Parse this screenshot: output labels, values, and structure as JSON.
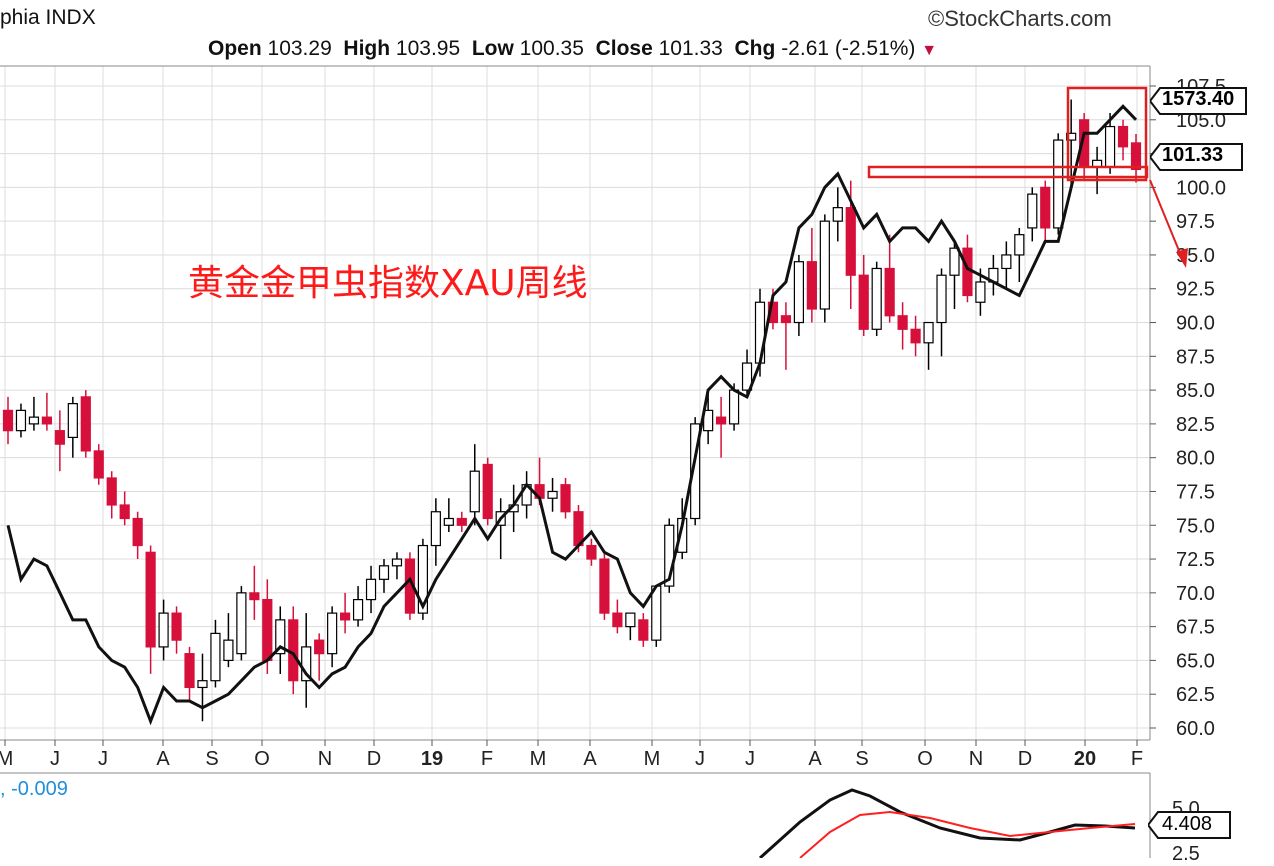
{
  "header": {
    "symbol_text": "phia INDX",
    "provider": "StockCharts.com",
    "copyright_symbol": "©",
    "ohlc": {
      "open_label": "Open",
      "open": "103.29",
      "high_label": "High",
      "high": "103.95",
      "low_label": "Low",
      "low": "100.35",
      "close_label": "Close",
      "close": "101.33",
      "chg_label": "Chg",
      "chg": "-2.61 (-2.51%)"
    }
  },
  "annotation": {
    "text": "黄金金甲虫指数XAU周线",
    "color": "#ff0000"
  },
  "price_labels": {
    "top": "1573.40",
    "last": "101.33"
  },
  "lower_panel": {
    "value_text": ", -0.009",
    "last_label": "4.408",
    "ticks": [
      "5.0",
      "2.5"
    ]
  },
  "colors": {
    "up": "#000000",
    "down": "#d6103b",
    "signal": "#ff2020",
    "grid": "#dcdcdc",
    "accent_blue": "#1f8fd9"
  },
  "chart_data": {
    "type": "candlestick",
    "y_ticks": [
      "60.0",
      "62.5",
      "65.0",
      "67.5",
      "70.0",
      "72.5",
      "75.0",
      "77.5",
      "80.0",
      "82.5",
      "85.0",
      "87.5",
      "90.0",
      "92.5",
      "95.0",
      "97.5",
      "100.0",
      "102.5",
      "105.0",
      "107.5"
    ],
    "ylim": [
      60,
      107.5
    ],
    "x_labels": [
      "M",
      "J",
      "J",
      "A",
      "S",
      "O",
      "N",
      "D",
      "19",
      "F",
      "M",
      "A",
      "M",
      "J",
      "J",
      "A",
      "S",
      "O",
      "N",
      "D",
      "20",
      "F"
    ],
    "candles": [
      {
        "o": 83.5,
        "h": 84.5,
        "l": 81.0,
        "c": 82.0
      },
      {
        "o": 82.0,
        "h": 84.0,
        "l": 81.5,
        "c": 83.5
      },
      {
        "o": 82.5,
        "h": 84.5,
        "l": 82.0,
        "c": 83.0
      },
      {
        "o": 83.0,
        "h": 84.8,
        "l": 82.0,
        "c": 82.5
      },
      {
        "o": 82.0,
        "h": 83.5,
        "l": 79.0,
        "c": 81.0
      },
      {
        "o": 81.5,
        "h": 84.5,
        "l": 80.0,
        "c": 84.0
      },
      {
        "o": 84.5,
        "h": 85.0,
        "l": 80.0,
        "c": 80.5
      },
      {
        "o": 80.5,
        "h": 81.0,
        "l": 78.0,
        "c": 78.5
      },
      {
        "o": 78.5,
        "h": 79.0,
        "l": 75.5,
        "c": 76.5
      },
      {
        "o": 76.5,
        "h": 77.5,
        "l": 75.0,
        "c": 75.5
      },
      {
        "o": 75.5,
        "h": 76.0,
        "l": 72.5,
        "c": 73.5
      },
      {
        "o": 73.0,
        "h": 73.5,
        "l": 64.0,
        "c": 66.0
      },
      {
        "o": 66.0,
        "h": 69.5,
        "l": 65.0,
        "c": 68.5
      },
      {
        "o": 68.5,
        "h": 69.0,
        "l": 65.5,
        "c": 66.5
      },
      {
        "o": 65.5,
        "h": 66.0,
        "l": 62.0,
        "c": 63.0
      },
      {
        "o": 63.0,
        "h": 65.5,
        "l": 60.5,
        "c": 63.5
      },
      {
        "o": 63.5,
        "h": 68.0,
        "l": 63.0,
        "c": 67.0
      },
      {
        "o": 65.0,
        "h": 68.5,
        "l": 64.5,
        "c": 66.5
      },
      {
        "o": 65.5,
        "h": 70.5,
        "l": 65.0,
        "c": 70.0
      },
      {
        "o": 70.0,
        "h": 72.0,
        "l": 68.0,
        "c": 69.5
      },
      {
        "o": 69.5,
        "h": 71.0,
        "l": 64.0,
        "c": 65.0
      },
      {
        "o": 65.5,
        "h": 69.0,
        "l": 64.0,
        "c": 68.0
      },
      {
        "o": 68.0,
        "h": 69.0,
        "l": 62.5,
        "c": 63.5
      },
      {
        "o": 63.5,
        "h": 68.5,
        "l": 61.5,
        "c": 66.0
      },
      {
        "o": 66.5,
        "h": 67.0,
        "l": 63.5,
        "c": 65.5
      },
      {
        "o": 65.5,
        "h": 69.0,
        "l": 64.5,
        "c": 68.5
      },
      {
        "o": 68.5,
        "h": 70.0,
        "l": 67.0,
        "c": 68.0
      },
      {
        "o": 68.0,
        "h": 70.5,
        "l": 67.5,
        "c": 69.5
      },
      {
        "o": 69.5,
        "h": 72.0,
        "l": 68.5,
        "c": 71.0
      },
      {
        "o": 71.0,
        "h": 72.5,
        "l": 70.0,
        "c": 72.0
      },
      {
        "o": 72.0,
        "h": 73.0,
        "l": 71.0,
        "c": 72.5
      },
      {
        "o": 72.5,
        "h": 73.0,
        "l": 68.0,
        "c": 68.5
      },
      {
        "o": 68.5,
        "h": 74.0,
        "l": 68.0,
        "c": 73.5
      },
      {
        "o": 73.5,
        "h": 77.0,
        "l": 72.0,
        "c": 76.0
      },
      {
        "o": 75.0,
        "h": 77.0,
        "l": 74.5,
        "c": 75.5
      },
      {
        "o": 75.5,
        "h": 76.0,
        "l": 74.5,
        "c": 75.0
      },
      {
        "o": 76.0,
        "h": 81.0,
        "l": 75.0,
        "c": 79.0
      },
      {
        "o": 79.5,
        "h": 80.0,
        "l": 75.0,
        "c": 75.5
      },
      {
        "o": 75.0,
        "h": 77.0,
        "l": 72.5,
        "c": 76.0
      },
      {
        "o": 76.0,
        "h": 78.0,
        "l": 74.5,
        "c": 76.5
      },
      {
        "o": 76.5,
        "h": 79.0,
        "l": 75.5,
        "c": 78.0
      },
      {
        "o": 78.0,
        "h": 80.0,
        "l": 76.5,
        "c": 77.0
      },
      {
        "o": 77.0,
        "h": 78.5,
        "l": 76.0,
        "c": 77.5
      },
      {
        "o": 78.0,
        "h": 78.5,
        "l": 75.5,
        "c": 76.0
      },
      {
        "o": 76.0,
        "h": 76.5,
        "l": 73.0,
        "c": 73.5
      },
      {
        "o": 73.5,
        "h": 74.0,
        "l": 72.0,
        "c": 72.5
      },
      {
        "o": 72.5,
        "h": 73.0,
        "l": 68.0,
        "c": 68.5
      },
      {
        "o": 68.5,
        "h": 69.5,
        "l": 67.0,
        "c": 67.5
      },
      {
        "o": 67.5,
        "h": 68.5,
        "l": 66.5,
        "c": 68.5
      },
      {
        "o": 68.0,
        "h": 68.5,
        "l": 66.0,
        "c": 66.5
      },
      {
        "o": 66.5,
        "h": 70.5,
        "l": 66.0,
        "c": 70.5
      },
      {
        "o": 70.5,
        "h": 75.5,
        "l": 70.0,
        "c": 75.0
      },
      {
        "o": 73.0,
        "h": 77.0,
        "l": 72.5,
        "c": 75.5
      },
      {
        "o": 75.5,
        "h": 83.0,
        "l": 75.0,
        "c": 82.5
      },
      {
        "o": 82.0,
        "h": 85.0,
        "l": 81.0,
        "c": 83.5
      },
      {
        "o": 83.0,
        "h": 84.5,
        "l": 80.0,
        "c": 82.5
      },
      {
        "o": 82.5,
        "h": 85.5,
        "l": 82.0,
        "c": 85.0
      },
      {
        "o": 85.0,
        "h": 88.0,
        "l": 84.5,
        "c": 87.0
      },
      {
        "o": 87.0,
        "h": 92.5,
        "l": 86.0,
        "c": 91.5
      },
      {
        "o": 91.5,
        "h": 92.5,
        "l": 89.5,
        "c": 90.0
      },
      {
        "o": 90.5,
        "h": 91.5,
        "l": 86.5,
        "c": 90.0
      },
      {
        "o": 90.0,
        "h": 95.0,
        "l": 89.0,
        "c": 94.5
      },
      {
        "o": 94.5,
        "h": 97.0,
        "l": 90.0,
        "c": 91.0
      },
      {
        "o": 91.0,
        "h": 98.0,
        "l": 90.0,
        "c": 97.5
      },
      {
        "o": 97.5,
        "h": 100.0,
        "l": 96.0,
        "c": 98.5
      },
      {
        "o": 98.5,
        "h": 100.5,
        "l": 91.0,
        "c": 93.5
      },
      {
        "o": 93.5,
        "h": 95.0,
        "l": 89.0,
        "c": 89.5
      },
      {
        "o": 89.5,
        "h": 94.5,
        "l": 89.0,
        "c": 94.0
      },
      {
        "o": 94.0,
        "h": 96.5,
        "l": 90.0,
        "c": 90.5
      },
      {
        "o": 90.5,
        "h": 91.5,
        "l": 88.0,
        "c": 89.5
      },
      {
        "o": 89.5,
        "h": 90.5,
        "l": 87.5,
        "c": 88.5
      },
      {
        "o": 88.5,
        "h": 90.0,
        "l": 86.5,
        "c": 90.0
      },
      {
        "o": 90.0,
        "h": 94.0,
        "l": 87.5,
        "c": 93.5
      },
      {
        "o": 93.5,
        "h": 96.0,
        "l": 91.0,
        "c": 95.5
      },
      {
        "o": 95.5,
        "h": 96.5,
        "l": 91.5,
        "c": 92.0
      },
      {
        "o": 91.5,
        "h": 94.0,
        "l": 90.5,
        "c": 93.0
      },
      {
        "o": 93.0,
        "h": 95.0,
        "l": 92.0,
        "c": 94.0
      },
      {
        "o": 94.0,
        "h": 96.0,
        "l": 92.5,
        "c": 95.0
      },
      {
        "o": 95.0,
        "h": 97.0,
        "l": 93.0,
        "c": 96.5
      },
      {
        "o": 97.0,
        "h": 100.0,
        "l": 96.0,
        "c": 99.5
      },
      {
        "o": 100.0,
        "h": 100.5,
        "l": 96.0,
        "c": 97.0
      },
      {
        "o": 97.0,
        "h": 104.0,
        "l": 96.5,
        "c": 103.5
      },
      {
        "o": 103.5,
        "h": 106.5,
        "l": 100.0,
        "c": 104.0
      },
      {
        "o": 105.0,
        "h": 105.5,
        "l": 100.5,
        "c": 101.5
      },
      {
        "o": 101.5,
        "h": 103.0,
        "l": 99.5,
        "c": 102.0
      },
      {
        "o": 101.5,
        "h": 105.5,
        "l": 101.0,
        "c": 104.5
      },
      {
        "o": 104.5,
        "h": 105.0,
        "l": 102.0,
        "c": 103.0
      },
      {
        "o": 103.29,
        "h": 103.95,
        "l": 100.35,
        "c": 101.33
      }
    ],
    "overlay_line": [
      75,
      71,
      72.5,
      72,
      70,
      68,
      68,
      66,
      65,
      64.5,
      63,
      60.5,
      63,
      62,
      62,
      61.5,
      62,
      62.5,
      63.5,
      64.5,
      65,
      66,
      65.5,
      64,
      63,
      64,
      64.5,
      66,
      67,
      69,
      70,
      71,
      69,
      71,
      72.5,
      74,
      75.5,
      74,
      75.5,
      76.5,
      78,
      77,
      73,
      72.5,
      73.5,
      74.5,
      73,
      72.5,
      70,
      69,
      70.5,
      71,
      75,
      80,
      85,
      86,
      85,
      84.5,
      87,
      92,
      93,
      97,
      98,
      100,
      101,
      99,
      97,
      98,
      96,
      97,
      97,
      96,
      97.5,
      96,
      94,
      93.5,
      93,
      92.5,
      92,
      94,
      96,
      96,
      100,
      104,
      104,
      105,
      106,
      105
    ]
  }
}
